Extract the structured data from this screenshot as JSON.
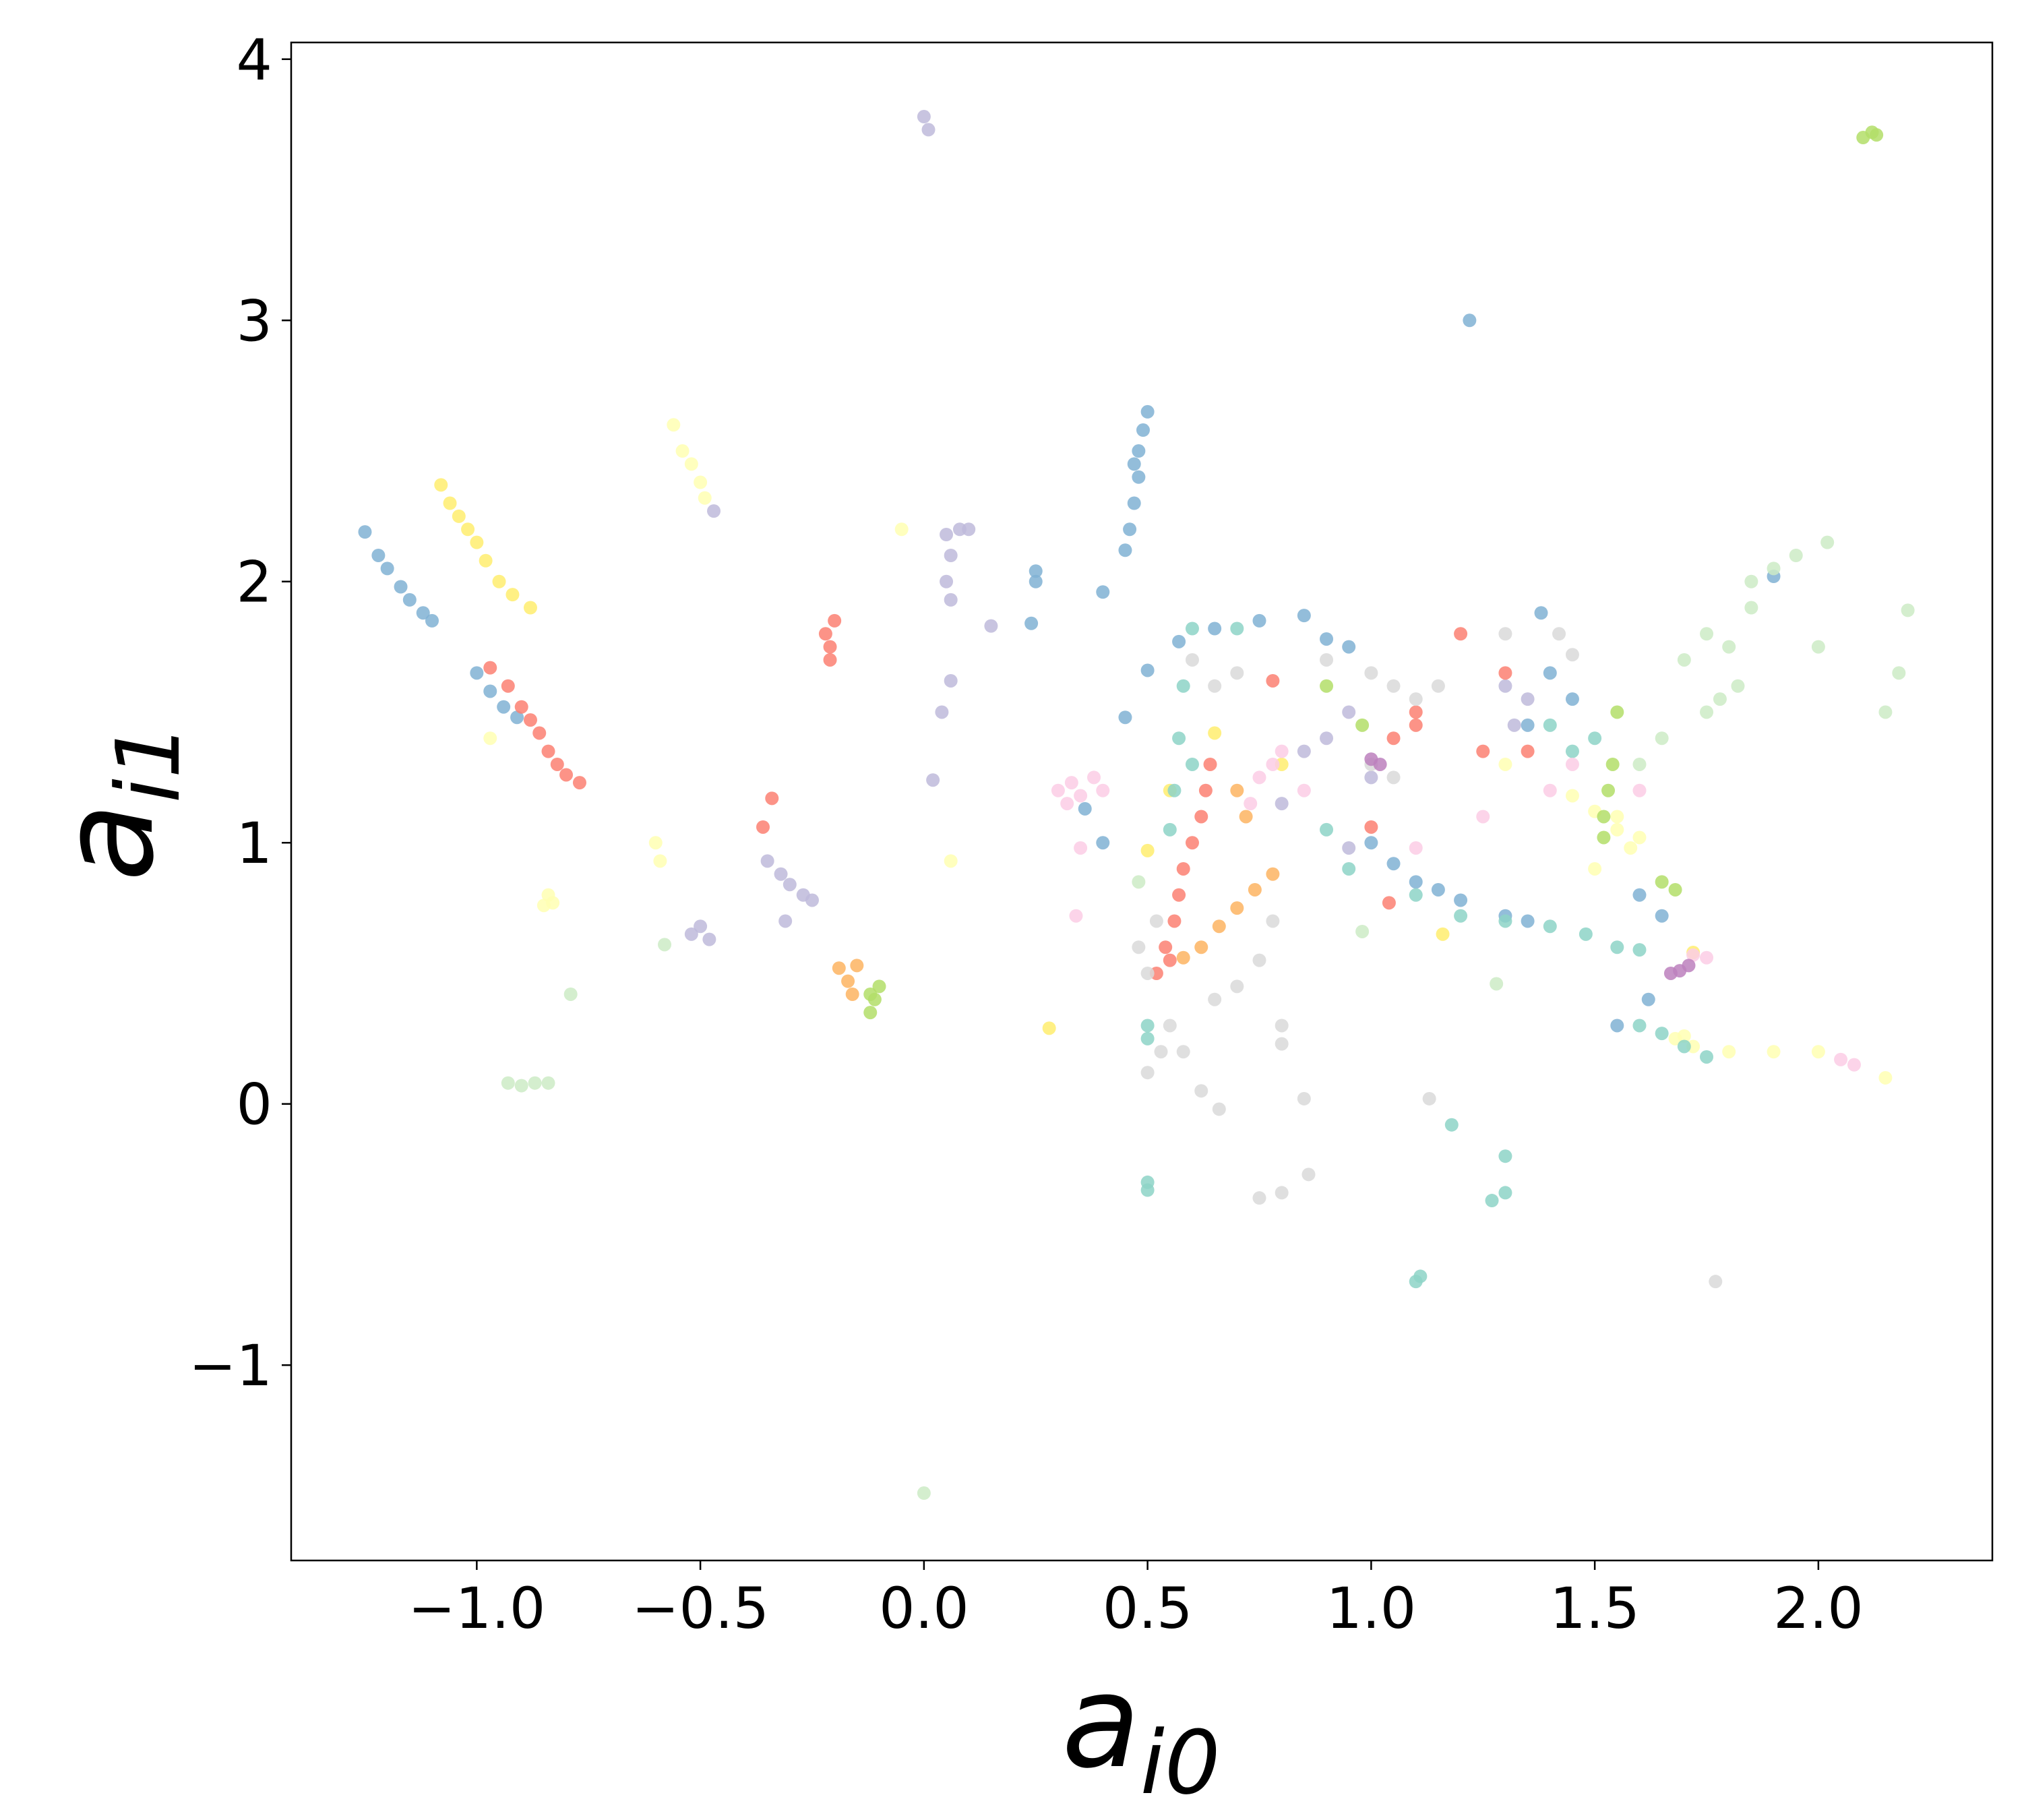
{
  "chart_data": {
    "type": "scatter",
    "xlabel": {
      "main": "a",
      "sub": "i0"
    },
    "ylabel": {
      "main": "a",
      "sub": "i1"
    },
    "xlim": [
      -1.415,
      2.389
    ],
    "ylim": [
      -1.748,
      4.064
    ],
    "xticks": [
      {
        "value": -1.0,
        "label": "−1.0"
      },
      {
        "value": -0.5,
        "label": "−0.5"
      },
      {
        "value": 0.0,
        "label": "0.0"
      },
      0.5,
      {
        "value": 1.0,
        "label": "1.0"
      },
      1.5,
      {
        "value": 2.0,
        "label": "2.0"
      }
    ],
    "yticks": [
      {
        "value": -1,
        "label": "−1"
      },
      0,
      1,
      2,
      3,
      4
    ],
    "grid": false,
    "series": [
      {
        "color": "#80b1d3",
        "x": [
          -1.25,
          -1.22,
          -1.2,
          -1.17,
          -1.15,
          -1.12,
          -1.1,
          -1.0,
          -0.97,
          -0.94,
          -0.91,
          0.45,
          0.46,
          0.47,
          0.48,
          0.47,
          0.48,
          0.49,
          0.5,
          0.25,
          0.25,
          0.24,
          0.4,
          1.22,
          0.5,
          0.57,
          0.65,
          0.75,
          0.85,
          0.9,
          0.95,
          1.0,
          1.05,
          1.1,
          1.15,
          1.2,
          1.3,
          1.35,
          0.45,
          0.4,
          0.36,
          1.35,
          1.4,
          1.45,
          1.38,
          1.6,
          1.65,
          1.55,
          1.62,
          1.9
        ],
        "y": [
          2.19,
          2.1,
          2.05,
          1.98,
          1.93,
          1.88,
          1.85,
          1.65,
          1.58,
          1.52,
          1.48,
          2.12,
          2.2,
          2.3,
          2.4,
          2.45,
          2.5,
          2.58,
          2.65,
          2.0,
          2.04,
          1.84,
          1.96,
          3.0,
          1.66,
          1.77,
          1.82,
          1.85,
          1.87,
          1.78,
          1.75,
          1.0,
          0.92,
          0.85,
          0.82,
          0.78,
          0.72,
          0.7,
          1.48,
          1.0,
          1.13,
          1.45,
          1.65,
          1.55,
          1.88,
          0.8,
          0.72,
          0.3,
          0.4,
          2.02
        ]
      },
      {
        "color": "#ffffb3",
        "x": [
          -0.56,
          -0.54,
          -0.52,
          -0.5,
          -0.49,
          -0.6,
          -0.59,
          -0.85,
          -0.84,
          -0.83,
          -0.97,
          0.06,
          -0.05,
          1.55,
          1.6,
          1.58,
          1.45,
          1.5,
          1.55,
          1.68,
          1.72,
          1.8,
          1.9,
          2.0,
          2.15,
          1.7,
          1.5,
          1.3
        ],
        "y": [
          2.6,
          2.5,
          2.45,
          2.38,
          2.32,
          1.0,
          0.93,
          0.76,
          0.8,
          0.77,
          1.4,
          0.93,
          2.2,
          1.05,
          1.02,
          0.98,
          1.18,
          1.12,
          1.1,
          0.25,
          0.22,
          0.2,
          0.2,
          0.2,
          0.1,
          0.26,
          0.9,
          1.3
        ]
      },
      {
        "color": "#ffed6f",
        "x": [
          -1.08,
          -1.06,
          -1.04,
          -1.02,
          -1.0,
          -0.98,
          -0.95,
          -0.92,
          -0.88,
          0.5,
          0.55,
          0.65,
          0.28,
          0.8,
          1.72,
          1.16
        ],
        "y": [
          2.37,
          2.3,
          2.25,
          2.2,
          2.15,
          2.08,
          2.0,
          1.95,
          1.9,
          0.97,
          1.2,
          1.42,
          0.29,
          1.3,
          0.58,
          0.65
        ]
      },
      {
        "color": "#bebada",
        "x": [
          0.0,
          0.01,
          0.05,
          0.06,
          0.05,
          0.06,
          0.08,
          0.1,
          0.06,
          0.04,
          0.15,
          0.02,
          -0.35,
          -0.32,
          -0.3,
          -0.27,
          -0.25,
          -0.31,
          -0.5,
          -0.48,
          -0.52,
          -0.47,
          0.8,
          0.85,
          0.9,
          0.95,
          1.0,
          0.95,
          1.3,
          1.35,
          1.32
        ],
        "y": [
          3.78,
          3.73,
          2.18,
          2.1,
          2.0,
          1.93,
          2.2,
          2.2,
          1.62,
          1.5,
          1.83,
          1.24,
          0.93,
          0.88,
          0.84,
          0.8,
          0.78,
          0.7,
          0.68,
          0.63,
          0.65,
          2.27,
          1.15,
          1.35,
          1.4,
          1.5,
          1.25,
          0.98,
          1.6,
          1.55,
          1.45
        ]
      },
      {
        "color": "#fb8072",
        "x": [
          -0.97,
          -0.93,
          -0.9,
          -0.88,
          -0.86,
          -0.84,
          -0.82,
          -0.8,
          -0.77,
          -0.22,
          -0.21,
          -0.2,
          -0.21,
          -0.34,
          -0.36,
          0.52,
          0.54,
          0.56,
          0.57,
          0.58,
          0.6,
          0.62,
          0.63,
          0.64,
          0.55,
          1.0,
          1.05,
          1.1,
          1.25,
          1.3,
          1.2,
          1.1,
          1.35,
          0.78,
          1.04
        ],
        "y": [
          1.67,
          1.6,
          1.52,
          1.47,
          1.42,
          1.35,
          1.3,
          1.26,
          1.23,
          1.8,
          1.75,
          1.85,
          1.7,
          1.17,
          1.06,
          0.5,
          0.6,
          0.7,
          0.8,
          0.9,
          1.0,
          1.1,
          1.2,
          1.3,
          0.55,
          1.06,
          1.4,
          1.45,
          1.35,
          1.65,
          1.8,
          1.5,
          1.35,
          1.62,
          0.77
        ]
      },
      {
        "color": "#fdb462",
        "x": [
          -0.19,
          -0.17,
          -0.16,
          -0.15,
          0.62,
          0.66,
          0.7,
          0.74,
          0.78,
          0.58,
          0.72,
          0.7
        ],
        "y": [
          0.52,
          0.47,
          0.42,
          0.53,
          0.6,
          0.68,
          0.75,
          0.82,
          0.88,
          0.56,
          1.1,
          1.2
        ]
      },
      {
        "color": "#b3de69",
        "x": [
          -0.12,
          -0.11,
          -0.1,
          -0.12,
          2.1,
          2.12,
          2.13,
          0.9,
          1.52,
          1.53,
          1.54,
          1.52,
          1.55,
          1.65,
          1.68,
          0.98
        ],
        "y": [
          0.35,
          0.4,
          0.45,
          0.42,
          3.7,
          3.72,
          3.71,
          1.6,
          1.1,
          1.2,
          1.3,
          1.02,
          1.5,
          0.85,
          0.82,
          1.45
        ]
      },
      {
        "color": "#8dd3c7",
        "x": [
          0.6,
          0.58,
          0.57,
          0.56,
          0.55,
          0.6,
          0.7,
          0.5,
          0.5,
          1.1,
          1.2,
          1.3,
          1.4,
          1.48,
          1.6,
          1.65,
          1.7,
          1.75,
          1.55,
          1.6,
          1.45,
          1.5,
          1.4,
          0.5,
          0.5,
          1.1,
          1.11,
          1.3,
          1.3,
          1.27,
          1.18,
          0.9,
          0.95
        ],
        "y": [
          1.82,
          1.6,
          1.4,
          1.2,
          1.05,
          1.3,
          1.82,
          0.25,
          0.3,
          0.8,
          0.72,
          0.7,
          0.68,
          0.65,
          0.3,
          0.27,
          0.22,
          0.18,
          0.6,
          0.59,
          1.35,
          1.4,
          1.45,
          -0.3,
          -0.33,
          -0.68,
          -0.66,
          -0.2,
          -0.34,
          -0.37,
          -0.08,
          1.05,
          0.9
        ]
      },
      {
        "color": "#fccde5",
        "x": [
          0.3,
          0.33,
          0.35,
          0.38,
          0.4,
          0.32,
          0.35,
          0.34,
          0.75,
          0.78,
          0.8,
          0.73,
          0.85,
          1.4,
          1.45,
          1.6,
          1.72,
          1.75,
          2.05,
          2.08,
          1.25,
          1.1
        ],
        "y": [
          1.2,
          1.23,
          1.18,
          1.25,
          1.2,
          1.15,
          0.98,
          0.72,
          1.25,
          1.3,
          1.35,
          1.15,
          1.2,
          1.2,
          1.3,
          1.2,
          0.57,
          0.56,
          0.17,
          0.15,
          1.1,
          0.98
        ]
      },
      {
        "color": "#d9d9d9",
        "x": [
          0.5,
          0.48,
          0.52,
          0.55,
          0.53,
          0.5,
          0.58,
          0.62,
          0.66,
          0.65,
          0.7,
          0.75,
          0.78,
          0.8,
          0.8,
          0.6,
          0.65,
          0.7,
          0.9,
          1.0,
          1.05,
          1.1,
          1.15,
          1.0,
          1.05,
          1.3,
          1.45,
          1.42,
          0.75,
          0.8,
          0.86,
          1.13,
          1.77,
          0.85
        ],
        "y": [
          0.5,
          0.6,
          0.7,
          0.3,
          0.2,
          0.12,
          0.2,
          0.05,
          -0.02,
          0.4,
          0.45,
          0.55,
          0.7,
          0.3,
          0.23,
          1.7,
          1.6,
          1.65,
          1.7,
          1.65,
          1.6,
          1.55,
          1.6,
          1.3,
          1.25,
          1.8,
          1.72,
          1.8,
          -0.36,
          -0.34,
          -0.27,
          0.02,
          -0.68,
          0.02
        ]
      },
      {
        "color": "#bc80bd",
        "x": [
          1.67,
          1.69,
          1.71,
          1.0,
          1.02
        ],
        "y": [
          0.5,
          0.51,
          0.53,
          1.32,
          1.3
        ]
      },
      {
        "color": "#ccebc5",
        "x": [
          -0.93,
          -0.9,
          -0.87,
          -0.84,
          0.0,
          -0.79,
          -0.58,
          1.75,
          1.8,
          1.85,
          1.82,
          1.78,
          1.9,
          1.85,
          1.7,
          1.75,
          1.95,
          2.02,
          1.65,
          1.6,
          2.2,
          2.18,
          2.15,
          2.0,
          1.28,
          0.98,
          0.48
        ],
        "y": [
          0.08,
          0.07,
          0.08,
          0.08,
          -1.49,
          0.42,
          0.61,
          1.8,
          1.75,
          1.9,
          1.6,
          1.55,
          2.05,
          2.0,
          1.7,
          1.5,
          2.1,
          2.15,
          1.4,
          1.3,
          1.89,
          1.65,
          1.5,
          1.75,
          0.46,
          0.66,
          0.85
        ]
      }
    ]
  }
}
